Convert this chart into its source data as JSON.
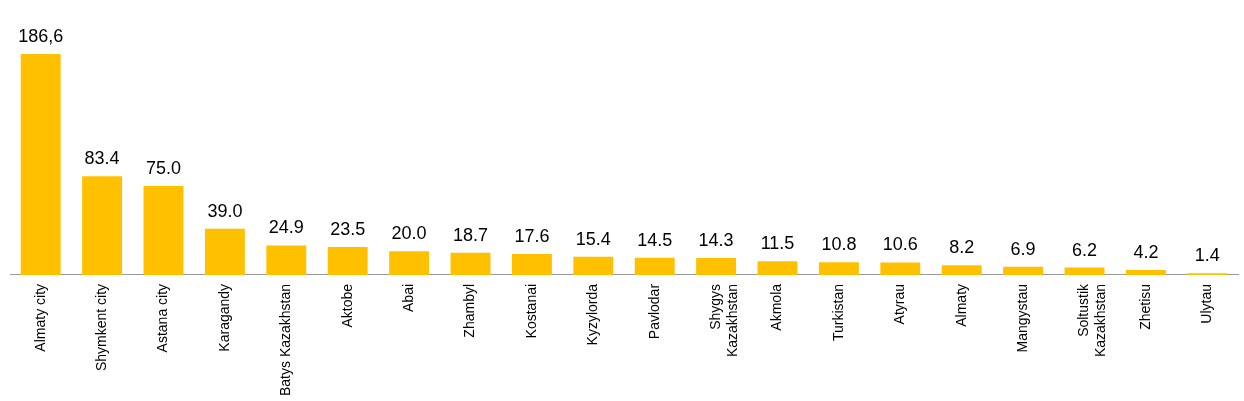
{
  "chart_data": {
    "type": "bar",
    "categories": [
      "Almaty city",
      "Shymkent city",
      "Astana city",
      "Karagandy",
      "Batys Kazakhstan",
      "Aktobe",
      "Abai",
      "Zhambyl",
      "Kostanai",
      "Kyzylorda",
      "Pavlodar",
      "Shygys Kazakhstan",
      "Akmola",
      "Turkistan",
      "Atyrau",
      "Almaty",
      "Mangystau",
      "Soltustik Kazakhstan",
      "Zhetisu",
      "Ulytau"
    ],
    "values": [
      186.6,
      83.4,
      75.0,
      39.0,
      24.9,
      23.5,
      20.0,
      18.7,
      17.6,
      15.4,
      14.5,
      14.3,
      11.5,
      10.8,
      10.6,
      8.2,
      6.9,
      6.2,
      4.2,
      1.4
    ],
    "value_labels": [
      "186,6",
      "83.4",
      "75.0",
      "39.0",
      "24.9",
      "23.5",
      "20.0",
      "18.7",
      "17.6",
      "15.4",
      "14.5",
      "14.3",
      "11.5",
      "10.8",
      "10.6",
      "8.2",
      "6.9",
      "6.2",
      "4.2",
      "1.4"
    ],
    "color": "#ffc000",
    "grid": false,
    "legend": false
  }
}
